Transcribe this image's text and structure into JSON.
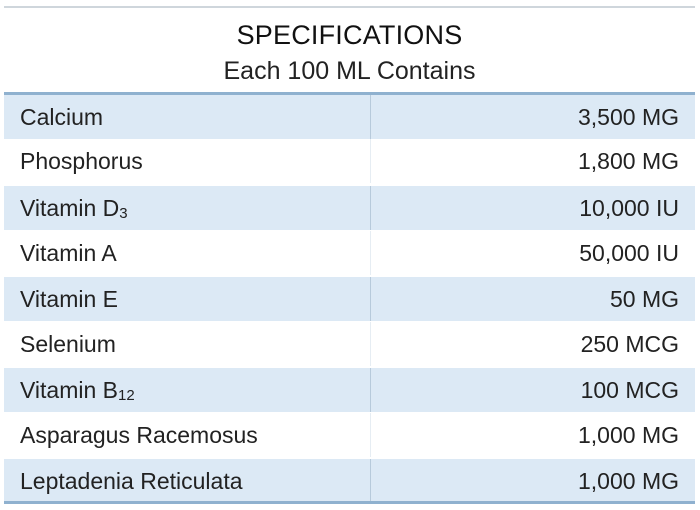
{
  "header": {
    "title": "SPECIFICATIONS",
    "subtitle": "Each 100 ML Contains"
  },
  "rows": [
    {
      "name": "Calcium",
      "sub": "",
      "value": "3,500 MG"
    },
    {
      "name": "Phosphorus",
      "sub": "",
      "value": "1,800 MG"
    },
    {
      "name": "Vitamin D",
      "sub": "3",
      "value": "10,000 IU"
    },
    {
      "name": "Vitamin A",
      "sub": "",
      "value": "50,000 IU"
    },
    {
      "name": "Vitamin E",
      "sub": "",
      "value": "50 MG"
    },
    {
      "name": "Selenium",
      "sub": "",
      "value": "250 MCG"
    },
    {
      "name": "Vitamin B",
      "sub": "12",
      "value": "100 MCG"
    },
    {
      "name": "Asparagus Racemosus",
      "sub": "",
      "value": "1,000 MG"
    },
    {
      "name": "Leptadenia Reticulata",
      "sub": "",
      "value": "1,000 MG"
    }
  ],
  "colors": {
    "shaded_row": "#dce9f5",
    "rule": "#8fb1cf",
    "text": "#222222"
  }
}
